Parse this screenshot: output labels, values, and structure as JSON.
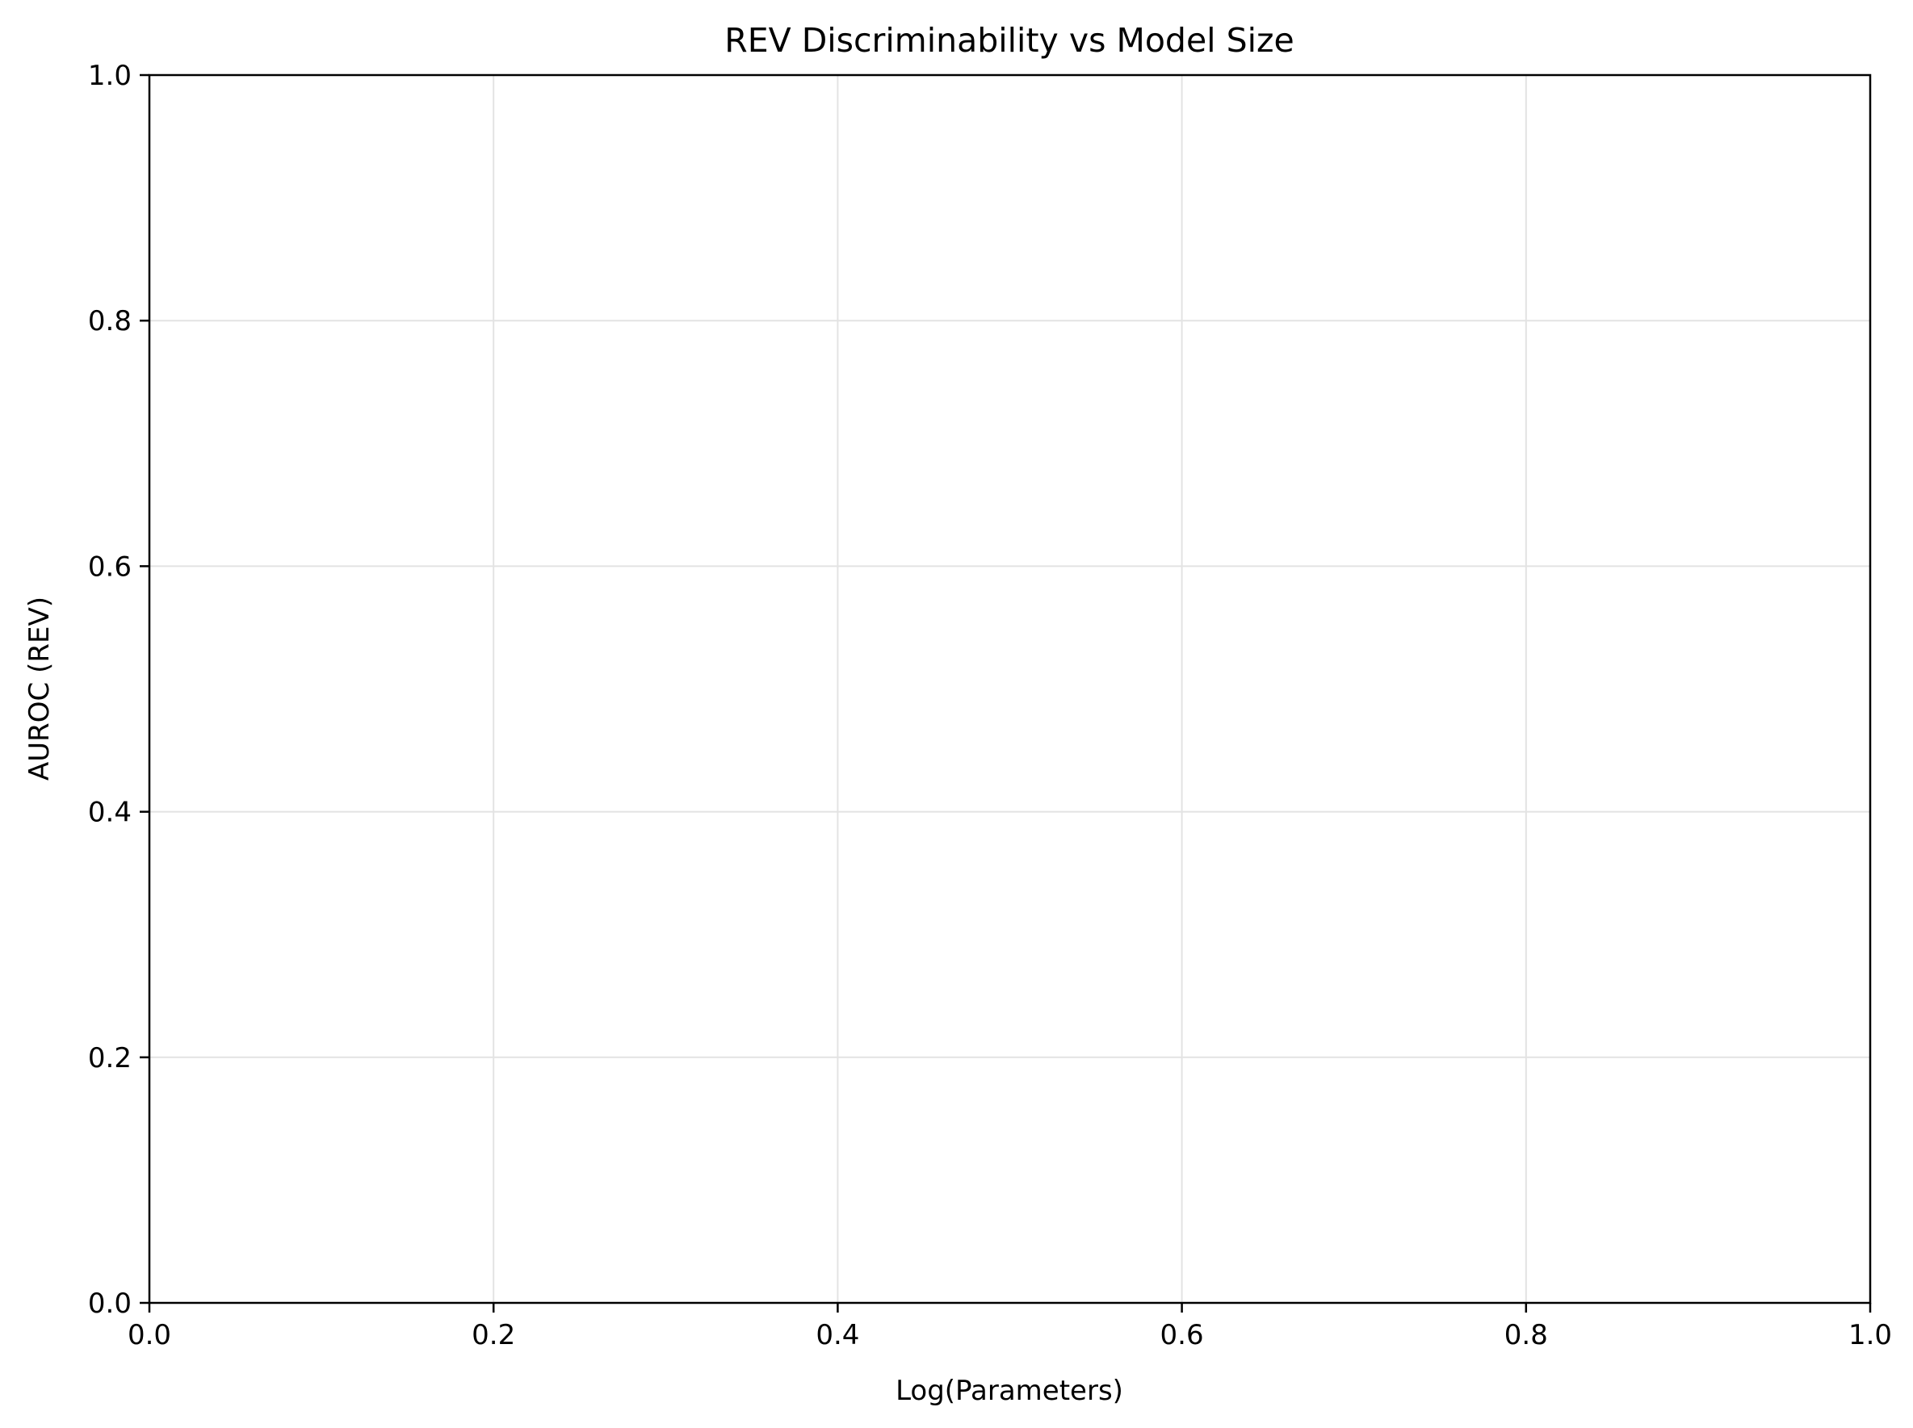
{
  "chart_data": {
    "type": "scatter",
    "title": "REV Discriminability vs Model Size",
    "xlabel": "Log(Parameters)",
    "ylabel": "AUROC (REV)",
    "xlim": [
      0.0,
      1.0
    ],
    "ylim": [
      0.0,
      1.0
    ],
    "x_ticks": [
      "0.0",
      "0.2",
      "0.4",
      "0.6",
      "0.8",
      "1.0"
    ],
    "y_ticks": [
      "0.0",
      "0.2",
      "0.4",
      "0.6",
      "0.8",
      "1.0"
    ],
    "grid": true,
    "series": []
  }
}
